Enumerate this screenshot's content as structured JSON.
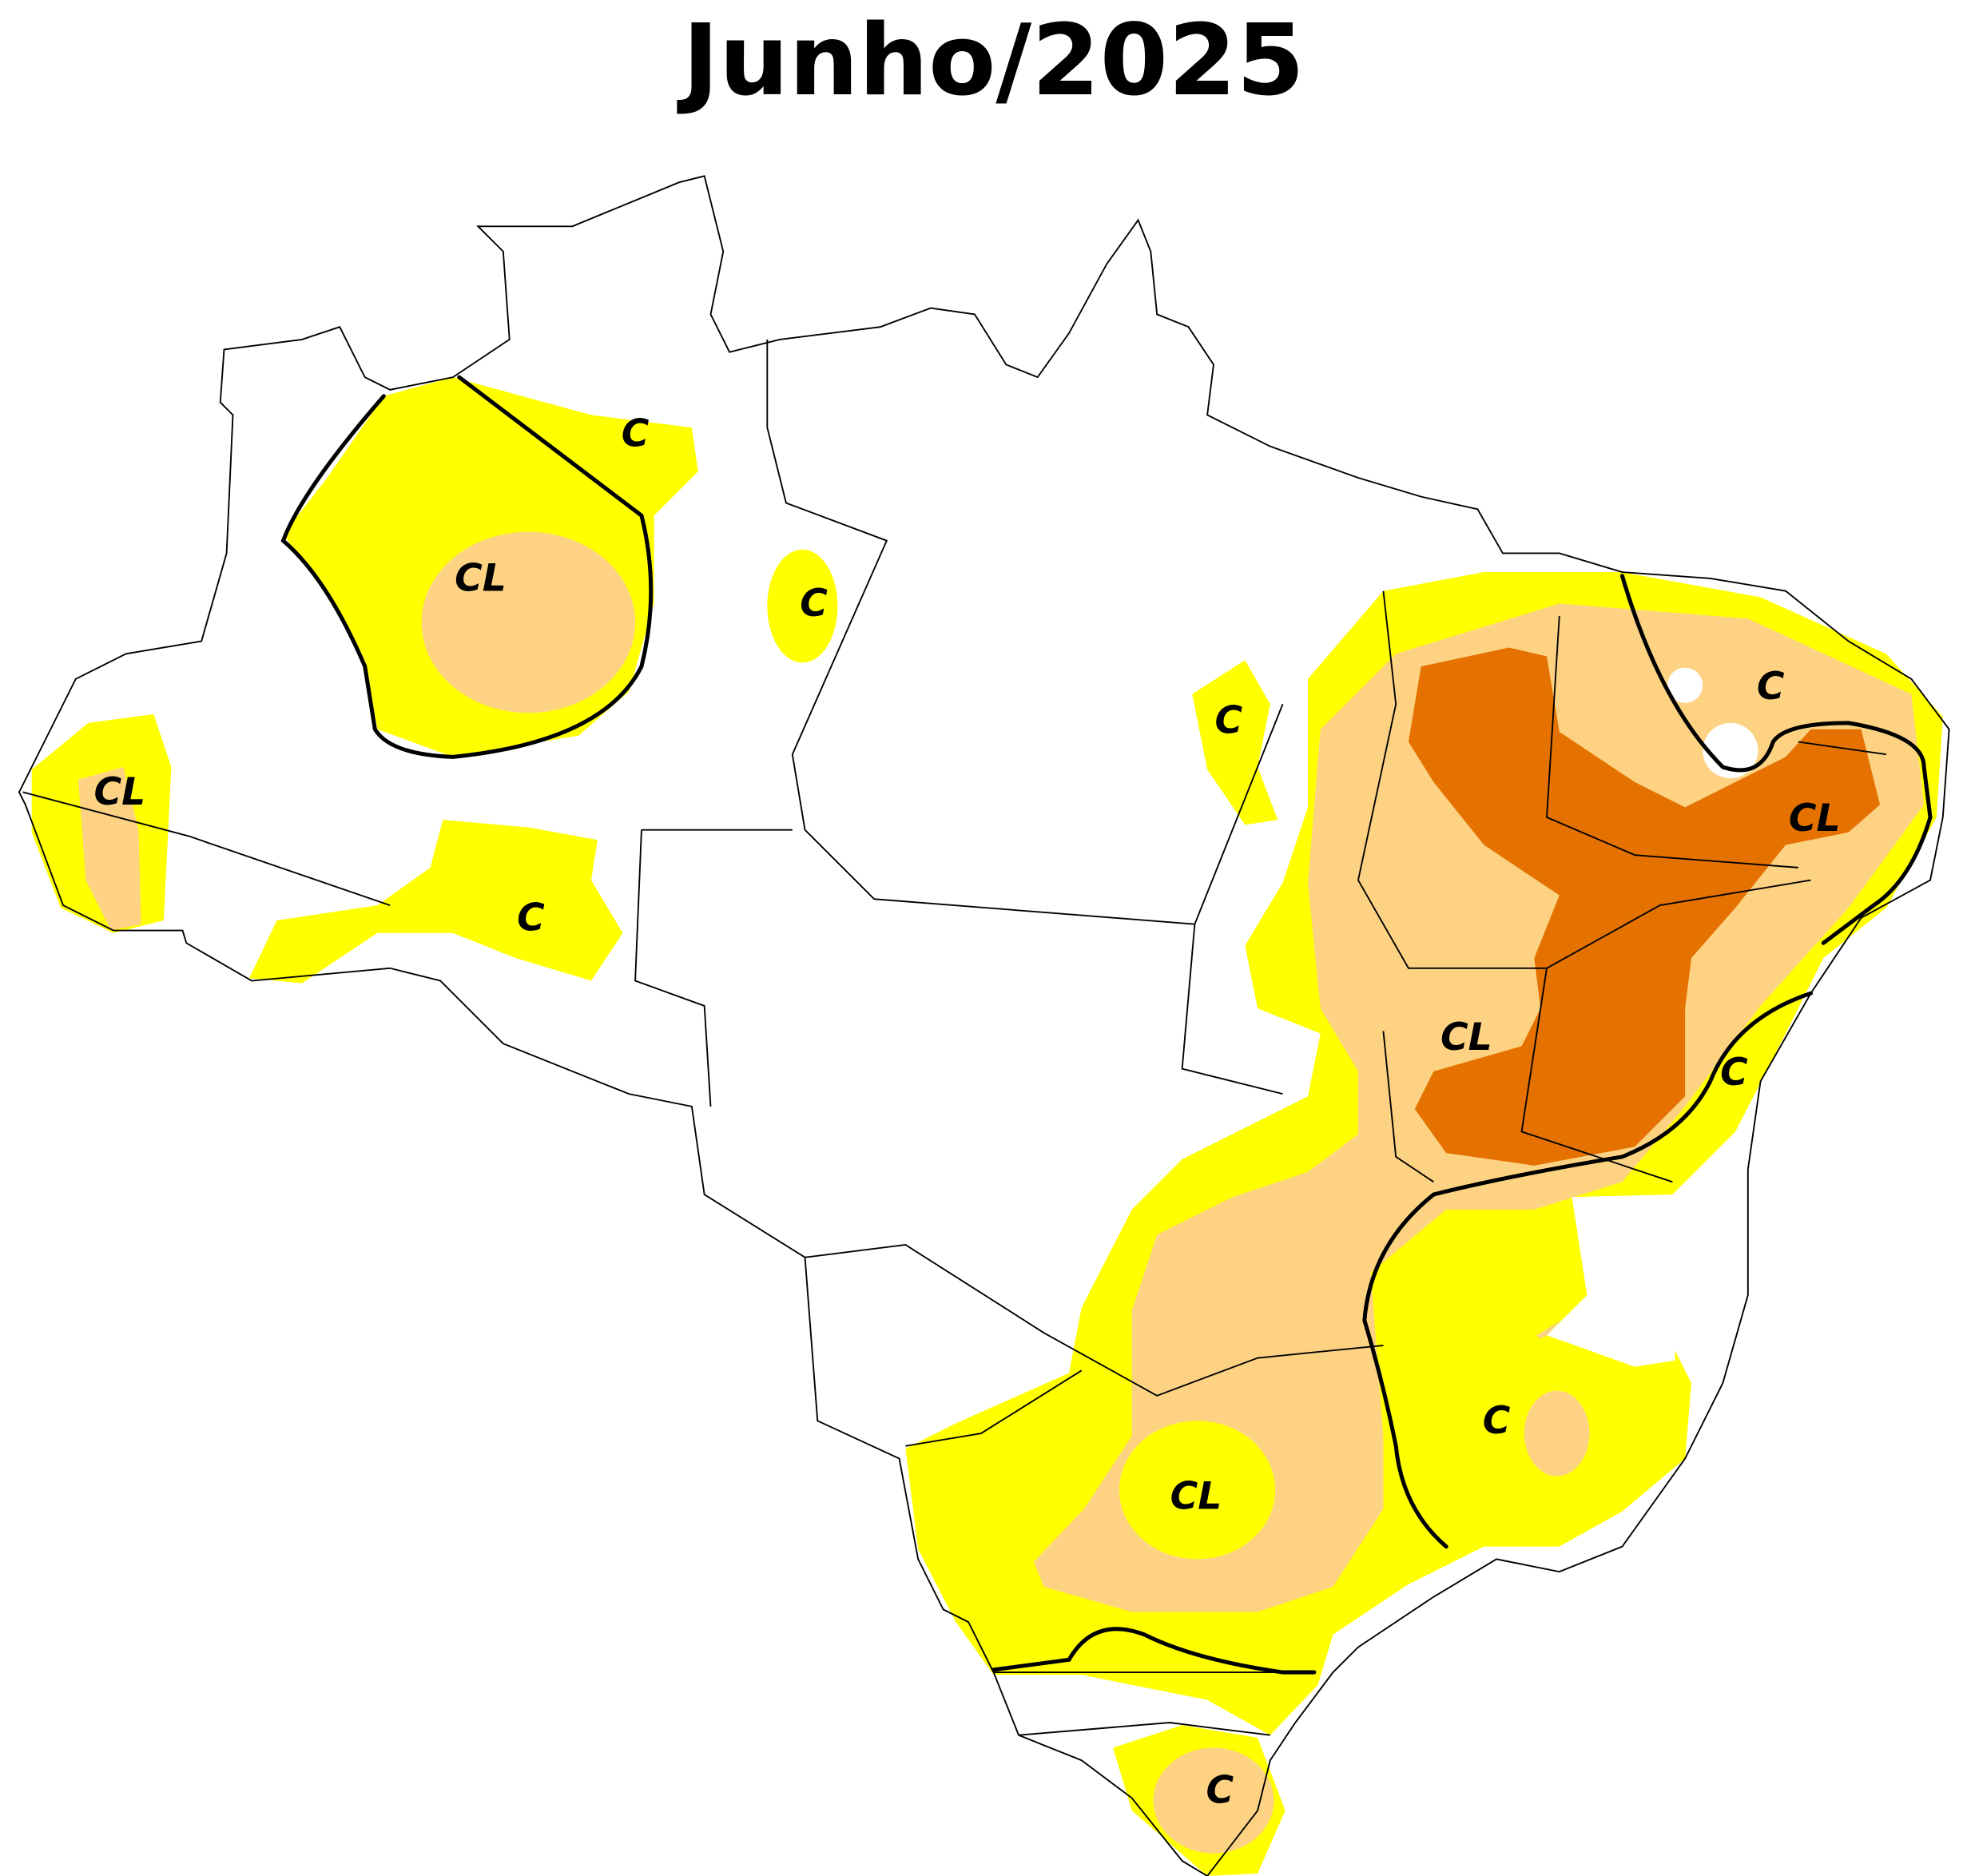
{
  "title": "Junho/2025",
  "labels": [
    "C",
    "CL",
    "C",
    "CL",
    "C",
    "C",
    "C",
    "CL",
    "CL",
    "C",
    "C",
    "CL",
    "C"
  ]
}
